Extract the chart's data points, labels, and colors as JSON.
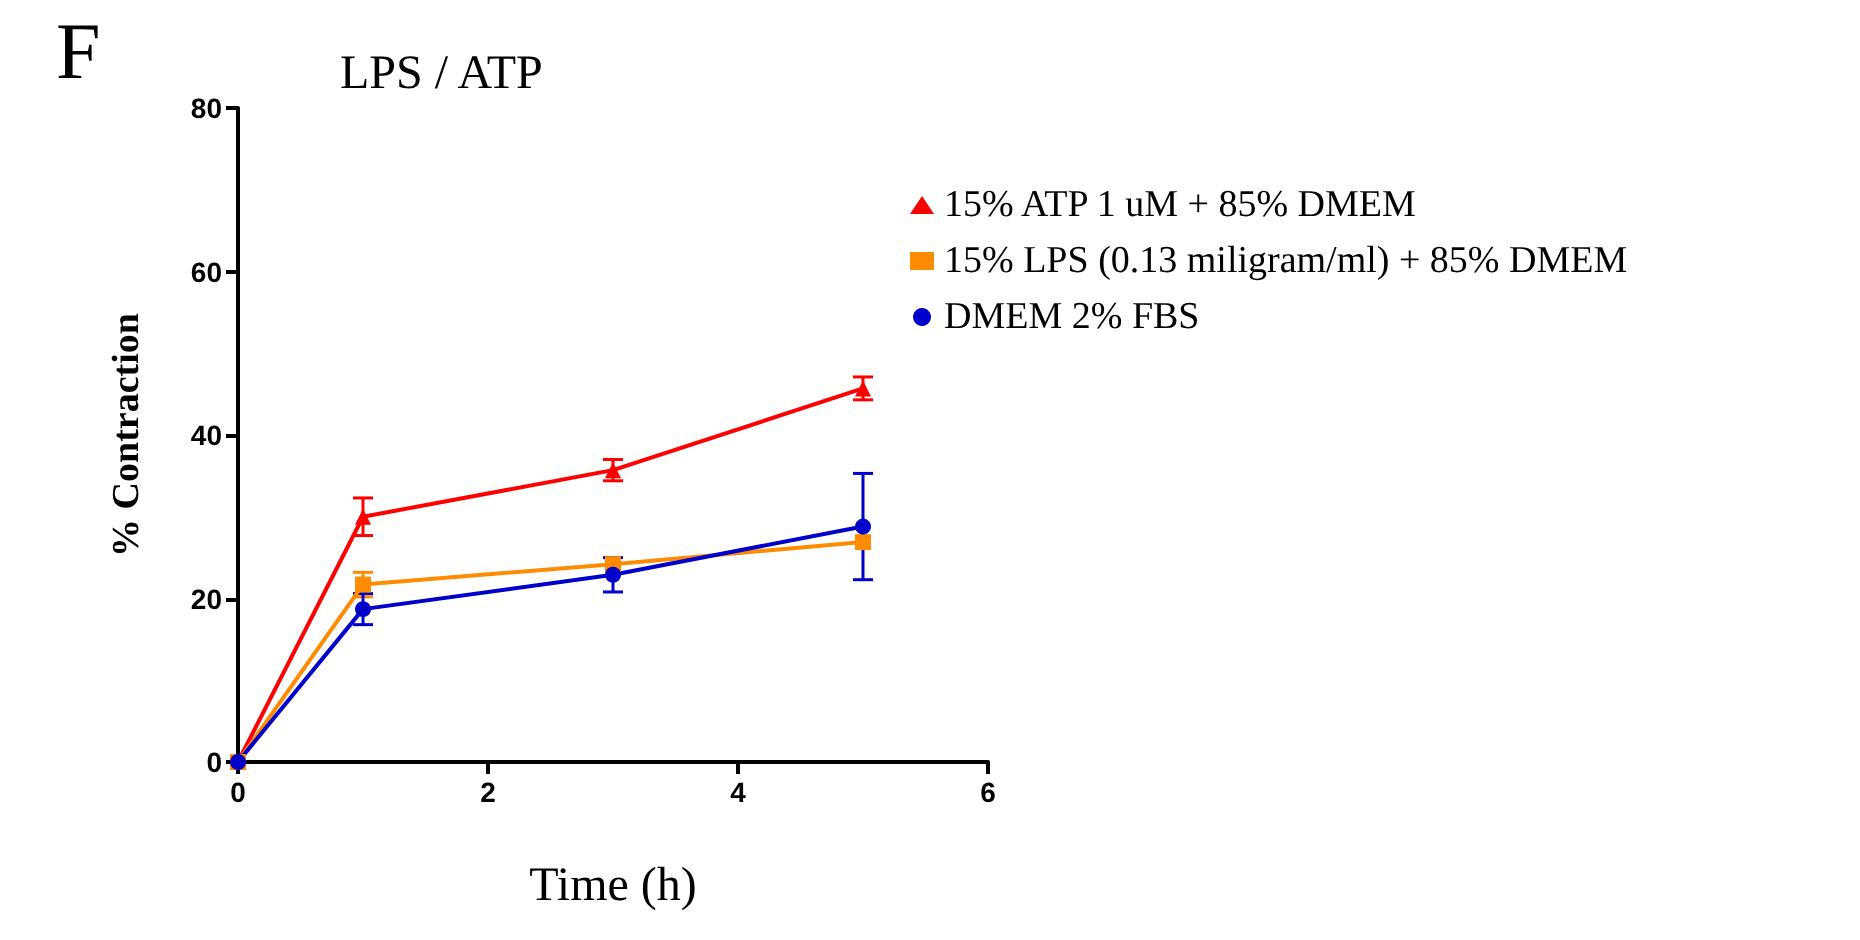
{
  "chart_data": {
    "type": "line",
    "title": "LPS / ATP",
    "xlabel": "Time (h)",
    "ylabel": "% Contraction",
    "annotations": [
      "F"
    ],
    "xlim": [
      0,
      6
    ],
    "xticks": [
      0,
      2,
      4,
      6
    ],
    "ylim": [
      0,
      80
    ],
    "yticks": [
      0,
      20,
      40,
      60,
      80
    ],
    "grid": false,
    "legend": "right",
    "line_style": "solid",
    "series": [
      {
        "name": "15% ATP 1 uM + 85% DMEM",
        "color": "#ff0000",
        "marker": "triangle",
        "x": [
          0,
          1,
          3,
          5
        ],
        "values": [
          0,
          30,
          35.7,
          45.7
        ],
        "errors": [
          null,
          2.3,
          1.3,
          1.4
        ]
      },
      {
        "name": "15% LPS (0.13 miligram/ml) + 85% DMEM",
        "color": "#ff8c00",
        "marker": "square",
        "x": [
          0,
          1,
          3,
          5
        ],
        "values": [
          0,
          21.7,
          24.2,
          26.9
        ],
        "errors": [
          null,
          1.5,
          null,
          null
        ]
      },
      {
        "name": "DMEM 2% FBS",
        "color": "#0000cc",
        "marker": "circle",
        "x": [
          0,
          1,
          3,
          5
        ],
        "values": [
          0,
          18.7,
          22.9,
          28.8
        ],
        "errors": [
          null,
          1.9,
          2.1,
          6.5
        ]
      }
    ]
  }
}
